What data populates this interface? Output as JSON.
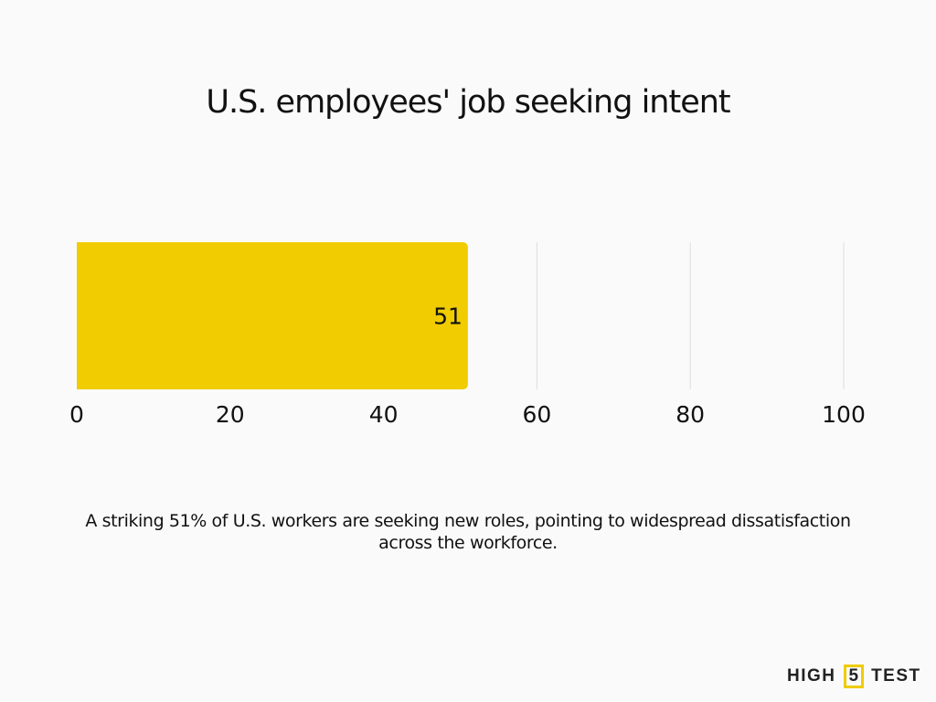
{
  "chart_data": {
    "type": "bar",
    "orientation": "horizontal",
    "title": "U.S. employees' job seeking intent",
    "categories": [
      ""
    ],
    "values": [
      51
    ],
    "data_labels": [
      "51"
    ],
    "xlim": [
      0,
      100
    ],
    "xticks": [
      0,
      20,
      40,
      60,
      80,
      100
    ],
    "xtick_labels": [
      "0",
      "20",
      "40",
      "60",
      "80",
      "100"
    ],
    "xlabel": "",
    "ylabel": "",
    "grid": true,
    "bar_color": "#f0cc00",
    "grid_color": "#dddddd"
  },
  "caption": "A striking 51% of U.S. workers are seeking new roles, pointing to widespread dissatisfaction across the workforce.",
  "logo": {
    "left": "HIGH",
    "middle": "5",
    "right": "TEST"
  }
}
